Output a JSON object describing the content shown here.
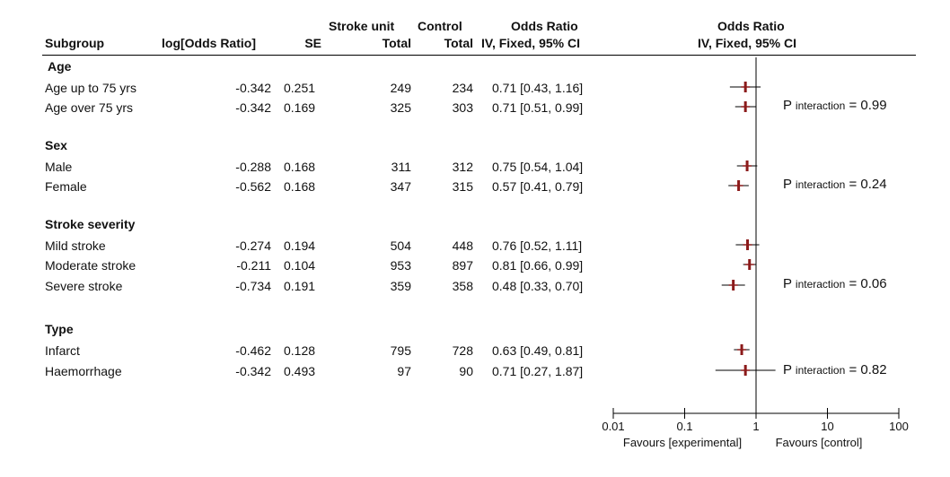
{
  "headers": {
    "subgroup": "Subgroup",
    "log_or": "log[Odds Ratio]",
    "se": "SE",
    "stroke_unit_top": "Stroke unit",
    "stroke_unit_bottom": "Total",
    "control_top": "Control",
    "control_bottom": "Total",
    "or_top": "Odds Ratio",
    "or_bottom": "IV, Fixed, 95% CI",
    "plot_top": "Odds Ratio",
    "plot_bottom": "IV, Fixed, 95% CI"
  },
  "groups": [
    {
      "name": "Age",
      "rows": [
        {
          "label": "Age up to 75 yrs",
          "log_or": "-0.342",
          "se": "0.251",
          "su": "249",
          "ctrl": "234",
          "ci_text": "0.71 [0.43, 1.16]"
        },
        {
          "label": "Age over 75 yrs",
          "log_or": "-0.342",
          "se": "0.169",
          "su": "325",
          "ctrl": "303",
          "ci_text": "0.71 [0.51, 0.99]"
        }
      ],
      "p_label": "P",
      "p_sub": "interaction",
      "p_value": " = 0.99"
    },
    {
      "name": "Sex",
      "rows": [
        {
          "label": "Male",
          "log_or": "-0.288",
          "se": "0.168",
          "su": "311",
          "ctrl": "312",
          "ci_text": "0.75 [0.54, 1.04]"
        },
        {
          "label": "Female",
          "log_or": "-0.562",
          "se": "0.168",
          "su": "347",
          "ctrl": "315",
          "ci_text": "0.57 [0.41, 0.79]"
        }
      ],
      "p_label": "P",
      "p_sub": "interaction",
      "p_value": " = 0.24"
    },
    {
      "name": "Stroke severity",
      "rows": [
        {
          "label": "Mild stroke",
          "log_or": "-0.274",
          "se": "0.194",
          "su": "504",
          "ctrl": "448",
          "ci_text": "0.76 [0.52, 1.11]"
        },
        {
          "label": "Moderate stroke",
          "log_or": "-0.211",
          "se": "0.104",
          "su": "953",
          "ctrl": "897",
          "ci_text": "0.81 [0.66, 0.99]"
        },
        {
          "label": "Severe stroke",
          "log_or": "-0.734",
          "se": "0.191",
          "su": "359",
          "ctrl": "358",
          "ci_text": "0.48 [0.33, 0.70]"
        }
      ],
      "p_label": "P",
      "p_sub": "interaction",
      "p_value": " = 0.06"
    },
    {
      "name": "Type",
      "rows": [
        {
          "label": "Infarct",
          "log_or": "-0.462",
          "se": "0.128",
          "su": "795",
          "ctrl": "728",
          "ci_text": "0.63 [0.49, 0.81]"
        },
        {
          "label": "Haemorrhage",
          "log_or": "-0.342",
          "se": "0.493",
          "su": "97",
          "ctrl": "90",
          "ci_text": "0.71 [0.27, 1.87]"
        }
      ],
      "p_label": "P",
      "p_sub": "interaction",
      "p_value": " = 0.82"
    }
  ],
  "chart_data": {
    "type": "forest",
    "x_scale": "log",
    "xlim": [
      0.01,
      100
    ],
    "x_ticks": [
      "0.01",
      "0.1",
      "1",
      "10",
      "100"
    ],
    "x_tick_values": [
      0.01,
      0.1,
      1,
      10,
      100
    ],
    "reference_line": 1,
    "xlabel_left": "Favours [experimental]",
    "xlabel_right": "Favours [control]",
    "points": [
      {
        "group": "Age",
        "label": "Age up to 75 yrs",
        "or": 0.71,
        "lo": 0.43,
        "hi": 1.16
      },
      {
        "group": "Age",
        "label": "Age over 75 yrs",
        "or": 0.71,
        "lo": 0.51,
        "hi": 0.99
      },
      {
        "group": "Sex",
        "label": "Male",
        "or": 0.75,
        "lo": 0.54,
        "hi": 1.04
      },
      {
        "group": "Sex",
        "label": "Female",
        "or": 0.57,
        "lo": 0.41,
        "hi": 0.79
      },
      {
        "group": "Stroke severity",
        "label": "Mild stroke",
        "or": 0.76,
        "lo": 0.52,
        "hi": 1.11
      },
      {
        "group": "Stroke severity",
        "label": "Moderate stroke",
        "or": 0.81,
        "lo": 0.66,
        "hi": 0.99
      },
      {
        "group": "Stroke severity",
        "label": "Severe stroke",
        "or": 0.48,
        "lo": 0.33,
        "hi": 0.7
      },
      {
        "group": "Type",
        "label": "Infarct",
        "or": 0.63,
        "lo": 0.49,
        "hi": 0.81
      },
      {
        "group": "Type",
        "label": "Haemorrhage",
        "or": 0.71,
        "lo": 0.27,
        "hi": 1.87
      }
    ],
    "colors": {
      "point": "#8b1a1a",
      "ci": "#000000",
      "axis": "#000000"
    }
  }
}
